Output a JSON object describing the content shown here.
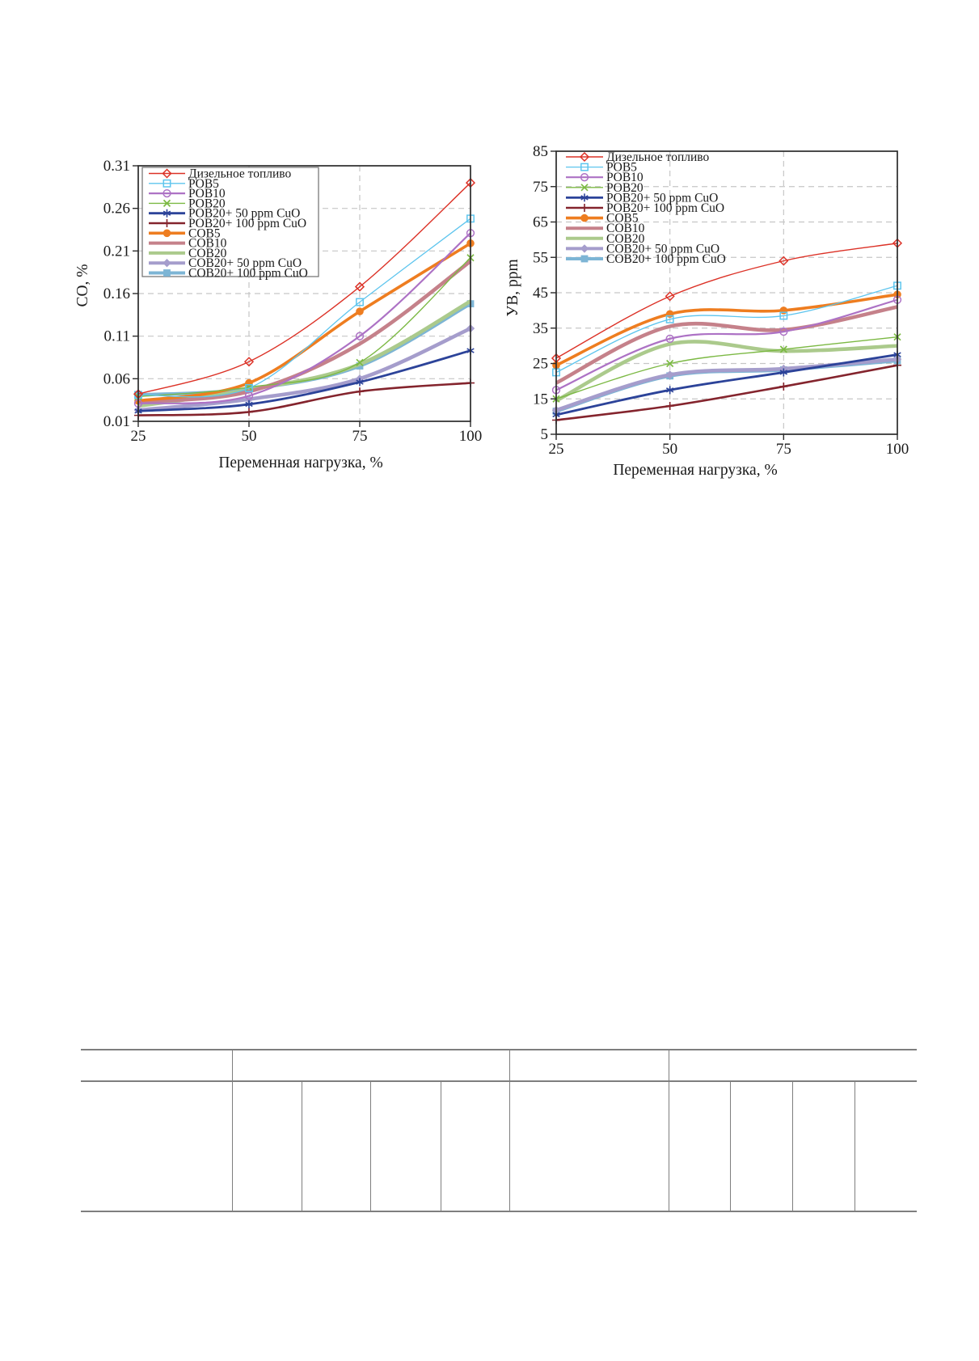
{
  "page": {
    "background": "#ffffff"
  },
  "chart_data": [
    {
      "type": "line",
      "title": "",
      "xlabel": "Переменная нагрузка, %",
      "ylabel": "СО, %",
      "xlim": [
        25,
        100
      ],
      "ylim": [
        0.01,
        0.31
      ],
      "x": [
        25,
        50,
        75,
        100
      ],
      "xticks": [
        "25",
        "50",
        "75",
        "100"
      ],
      "yticks": [
        "0.01",
        "0.06",
        "0.11",
        "0.16",
        "0.21",
        "0.26",
        "0.31"
      ],
      "grid": true,
      "legend_position": "top-left",
      "legend_border": true,
      "series": [
        {
          "name": "Дизельное топливо",
          "color": "#dc3227",
          "marker": "diamond-open",
          "width": 1.4,
          "values": [
            0.042,
            0.08,
            0.168,
            0.29
          ]
        },
        {
          "name": "POB5",
          "color": "#5ec5ee",
          "marker": "square-open",
          "width": 1.3,
          "values": [
            0.041,
            0.049,
            0.15,
            0.248
          ]
        },
        {
          "name": "POB10",
          "color": "#ad72c5",
          "marker": "circle-open",
          "width": 2.2,
          "values": [
            0.031,
            0.04,
            0.11,
            0.231
          ]
        },
        {
          "name": "POB20",
          "color": "#7cb944",
          "marker": "x",
          "width": 1.4,
          "values": [
            0.039,
            0.05,
            0.079,
            0.202
          ]
        },
        {
          "name": "POB20+ 50 ppm CuO",
          "color": "#2c4399",
          "marker": "asterisk",
          "width": 2.8,
          "values": [
            0.022,
            0.03,
            0.056,
            0.093
          ]
        },
        {
          "name": "POB20+ 100 ppm CuO",
          "color": "#84242d",
          "marker": "plus",
          "width": 2.6,
          "values": [
            0.017,
            0.021,
            0.045,
            0.055
          ]
        },
        {
          "name": "COB5",
          "color": "#ee7d20",
          "marker": "circle-filled",
          "width": 3.6,
          "values": [
            0.034,
            0.055,
            0.139,
            0.219
          ]
        },
        {
          "name": "COB10",
          "color": "#c5818a",
          "marker": "none",
          "width": 4.6,
          "values": [
            0.033,
            0.045,
            0.101,
            0.198
          ]
        },
        {
          "name": "COB20",
          "color": "#abca8c",
          "marker": "none",
          "width": 4.6,
          "values": [
            0.028,
            0.047,
            0.077,
            0.151
          ]
        },
        {
          "name": "COB20+ 50 ppm CuO",
          "color": "#a59dcc",
          "marker": "diamond-filled",
          "width": 4.6,
          "values": [
            0.023,
            0.036,
            0.06,
            0.119
          ]
        },
        {
          "name": "COB20+ 100 ppm CuO",
          "color": "#7db5d5",
          "marker": "square-filled",
          "width": 4.2,
          "values": [
            0.041,
            0.048,
            0.075,
            0.148
          ]
        }
      ]
    },
    {
      "type": "line",
      "title": "",
      "xlabel": "Переменная нагрузка, %",
      "ylabel": "УВ, ppm",
      "xlim": [
        25,
        100
      ],
      "ylim": [
        5,
        85
      ],
      "x": [
        25,
        50,
        75,
        100
      ],
      "xticks": [
        "25",
        "50",
        "75",
        "100"
      ],
      "yticks": [
        "5",
        "15",
        "25",
        "35",
        "45",
        "55",
        "65",
        "75",
        "85"
      ],
      "grid": true,
      "legend_position": "top-left",
      "legend_border": false,
      "series": [
        {
          "name": "Дизельное топливо",
          "color": "#dc3227",
          "marker": "diamond-open",
          "width": 1.4,
          "values": [
            26.5,
            44.0,
            54.0,
            59.0
          ]
        },
        {
          "name": "POB5",
          "color": "#5ec5ee",
          "marker": "square-open",
          "width": 1.3,
          "values": [
            22.5,
            37.5,
            38.5,
            47.0
          ]
        },
        {
          "name": "POB10",
          "color": "#ad72c5",
          "marker": "circle-open",
          "width": 2.2,
          "values": [
            17.5,
            32.0,
            34.0,
            43.0
          ]
        },
        {
          "name": "POB20",
          "color": "#7cb944",
          "marker": "x",
          "width": 1.4,
          "values": [
            15.0,
            25.0,
            29.0,
            32.5
          ]
        },
        {
          "name": "POB20+ 50 ppm CuO",
          "color": "#2c4399",
          "marker": "asterisk",
          "width": 2.8,
          "values": [
            10.5,
            17.5,
            22.5,
            27.5
          ]
        },
        {
          "name": "POB20+ 100 ppm CuO",
          "color": "#84242d",
          "marker": "plus",
          "width": 2.6,
          "values": [
            9.0,
            13.0,
            18.5,
            24.5
          ]
        },
        {
          "name": "COB5",
          "color": "#ee7d20",
          "marker": "circle-filled",
          "width": 3.6,
          "values": [
            24.5,
            39.0,
            40.0,
            44.5
          ]
        },
        {
          "name": "COB10",
          "color": "#c5818a",
          "marker": "none",
          "width": 4.6,
          "values": [
            19.5,
            35.5,
            34.5,
            41.0
          ]
        },
        {
          "name": "COB20",
          "color": "#abca8c",
          "marker": "none",
          "width": 4.6,
          "values": [
            14.5,
            30.5,
            28.5,
            30.0
          ]
        },
        {
          "name": "COB20+ 50 ppm CuO",
          "color": "#a59dcc",
          "marker": "diamond-filled",
          "width": 4.6,
          "values": [
            11.8,
            21.8,
            23.5,
            26.2
          ]
        },
        {
          "name": "COB20+ 100 ppm CuO",
          "color": "#7db5d5",
          "marker": "square-filled",
          "width": 4.2,
          "values": [
            11.5,
            21.5,
            23.2,
            25.8
          ]
        }
      ]
    }
  ],
  "style": {
    "frame_color": "#2b2b2b",
    "grid_color": "#c6c6c6",
    "text_color": "#1a1a1a",
    "legend_border_color": "#6f6f6f",
    "table_line_color": "#7e7e7e"
  }
}
